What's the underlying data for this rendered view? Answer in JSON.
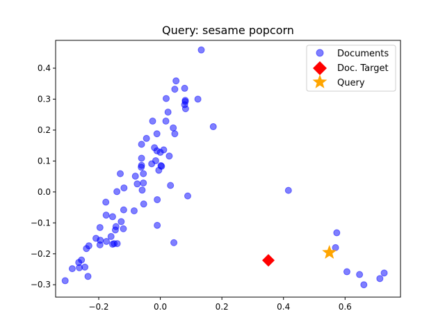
{
  "chart_data": {
    "type": "scatter",
    "title": "Query: sesame popcorn",
    "xlabel": "",
    "ylabel": "",
    "xlim": [
      -0.34,
      0.78
    ],
    "ylim": [
      -0.34,
      0.49
    ],
    "xticks": [
      {
        "value": -0.2,
        "label": "−0.2"
      },
      {
        "value": 0.0,
        "label": "0.0"
      },
      {
        "value": 0.2,
        "label": "0.2"
      },
      {
        "value": 0.4,
        "label": "0.4"
      },
      {
        "value": 0.6,
        "label": "0.6"
      }
    ],
    "yticks": [
      {
        "value": -0.3,
        "label": "−0.3"
      },
      {
        "value": -0.2,
        "label": "−0.2"
      },
      {
        "value": -0.1,
        "label": "−0.1"
      },
      {
        "value": 0.0,
        "label": "0.0"
      },
      {
        "value": 0.1,
        "label": "0.1"
      },
      {
        "value": 0.2,
        "label": "0.2"
      },
      {
        "value": 0.3,
        "label": "0.3"
      },
      {
        "value": 0.4,
        "label": "0.4"
      }
    ],
    "grid": false,
    "legend_position": "top-right",
    "series": [
      {
        "name": "Documents",
        "marker": "circle",
        "color": "#0000ff",
        "alpha": 0.5,
        "points": [
          [
            0.133,
            0.459
          ],
          [
            0.051,
            0.359
          ],
          [
            0.079,
            0.335
          ],
          [
            0.047,
            0.332
          ],
          [
            0.122,
            0.3
          ],
          [
            0.019,
            0.302
          ],
          [
            0.081,
            0.296
          ],
          [
            0.081,
            0.292
          ],
          [
            0.079,
            0.282
          ],
          [
            0.082,
            0.269
          ],
          [
            0.025,
            0.258
          ],
          [
            -0.025,
            0.229
          ],
          [
            0.018,
            0.229
          ],
          [
            0.172,
            0.211
          ],
          [
            0.042,
            0.207
          ],
          [
            0.047,
            0.188
          ],
          [
            -0.011,
            0.188
          ],
          [
            -0.045,
            0.173
          ],
          [
            -0.061,
            0.154
          ],
          [
            -0.019,
            0.143
          ],
          [
            0.011,
            0.136
          ],
          [
            -0.011,
            0.133
          ],
          [
            0.0,
            0.128
          ],
          [
            0.029,
            0.116
          ],
          [
            -0.061,
            0.109
          ],
          [
            -0.015,
            0.101
          ],
          [
            -0.028,
            0.091
          ],
          [
            0.002,
            0.085
          ],
          [
            -0.061,
            0.086
          ],
          [
            0.004,
            0.083
          ],
          [
            -0.062,
            0.08
          ],
          [
            -0.005,
            0.07
          ],
          [
            -0.13,
            0.059
          ],
          [
            -0.055,
            0.059
          ],
          [
            -0.081,
            0.051
          ],
          [
            -0.075,
            0.026
          ],
          [
            -0.055,
            0.029
          ],
          [
            0.033,
            0.021
          ],
          [
            -0.118,
            0.013
          ],
          [
            -0.141,
            0.001
          ],
          [
            -0.059,
            0.006
          ],
          [
            0.089,
            -0.013
          ],
          [
            -0.01,
            -0.025
          ],
          [
            -0.177,
            -0.033
          ],
          [
            -0.054,
            -0.039
          ],
          [
            -0.119,
            -0.058
          ],
          [
            -0.085,
            -0.061
          ],
          [
            -0.176,
            -0.075
          ],
          [
            -0.155,
            -0.08
          ],
          [
            -0.127,
            -0.096
          ],
          [
            -0.01,
            -0.108
          ],
          [
            -0.144,
            -0.112
          ],
          [
            -0.196,
            -0.115
          ],
          [
            -0.12,
            -0.119
          ],
          [
            -0.146,
            -0.123
          ],
          [
            -0.16,
            -0.144
          ],
          [
            -0.209,
            -0.15
          ],
          [
            -0.195,
            -0.156
          ],
          [
            -0.175,
            -0.16
          ],
          [
            0.044,
            -0.164
          ],
          [
            -0.15,
            -0.167
          ],
          [
            -0.196,
            -0.171
          ],
          [
            -0.14,
            -0.167
          ],
          [
            -0.155,
            -0.169
          ],
          [
            -0.232,
            -0.174
          ],
          [
            -0.24,
            -0.183
          ],
          [
            -0.256,
            -0.22
          ],
          [
            -0.265,
            -0.228
          ],
          [
            -0.245,
            -0.243
          ],
          [
            -0.286,
            -0.248
          ],
          [
            -0.263,
            -0.245
          ],
          [
            -0.235,
            -0.273
          ],
          [
            -0.309,
            -0.287
          ],
          [
            0.416,
            0.005
          ],
          [
            0.573,
            -0.132
          ],
          [
            0.569,
            -0.18
          ],
          [
            0.606,
            -0.258
          ],
          [
            0.647,
            -0.267
          ],
          [
            0.727,
            -0.262
          ],
          [
            0.713,
            -0.28
          ],
          [
            0.661,
            -0.3
          ]
        ]
      },
      {
        "name": "Doc. Target",
        "marker": "diamond",
        "color": "#ff0000",
        "points": [
          [
            0.351,
            -0.221
          ]
        ]
      },
      {
        "name": "Query",
        "marker": "star",
        "color": "#ffa500",
        "points": [
          [
            0.549,
            -0.196
          ]
        ]
      }
    ]
  }
}
